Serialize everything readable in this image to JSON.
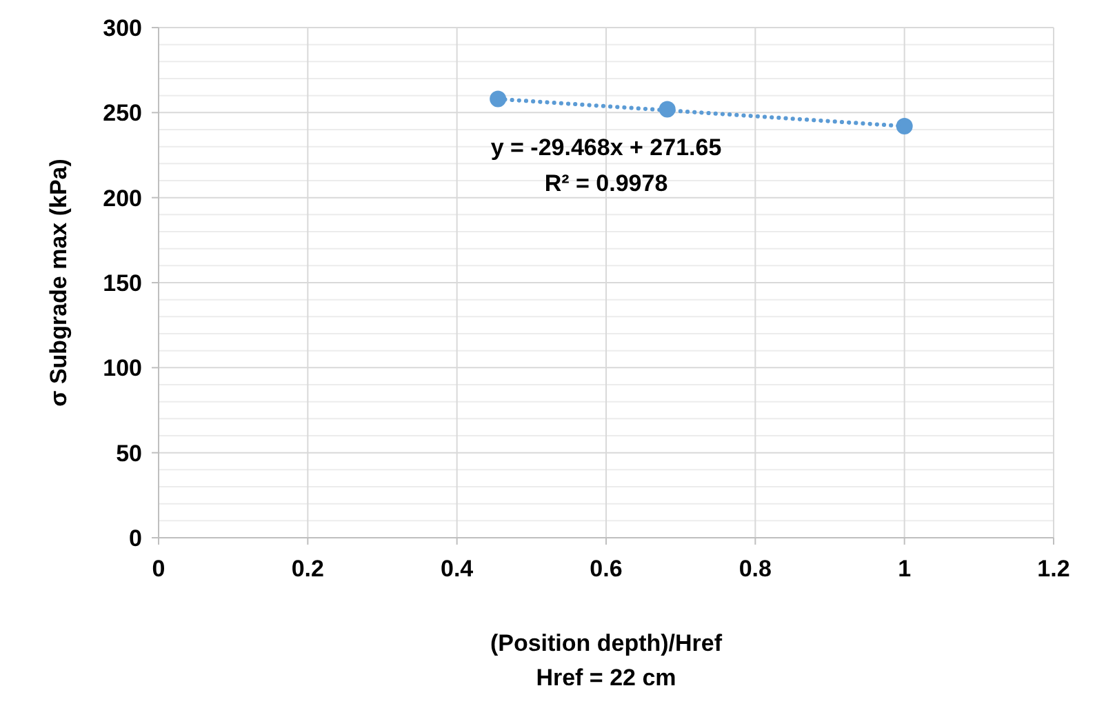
{
  "chart_data": {
    "type": "scatter",
    "xlabel": "(Position depth)/Href\nHref = 22 cm",
    "ylabel": "σ Subgrade max (kPa)",
    "xlim": [
      0,
      1.2
    ],
    "xticks": [
      0,
      0.2,
      0.4,
      0.6,
      0.8,
      1,
      1.2
    ],
    "ylim": [
      0,
      300
    ],
    "yticks": [
      0,
      {
        "value": 10,
        "label": null
      },
      {
        "value": 20,
        "label": null
      },
      {
        "value": 30,
        "label": null
      },
      {
        "value": 40,
        "label": null
      },
      50,
      {
        "value": 60,
        "label": null
      },
      {
        "value": 70,
        "label": null
      },
      {
        "value": 80,
        "label": null
      },
      {
        "value": 90,
        "label": null
      },
      100,
      {
        "value": 110,
        "label": null
      },
      {
        "value": 120,
        "label": null
      },
      {
        "value": 130,
        "label": null
      },
      {
        "value": 140,
        "label": null
      },
      150,
      {
        "value": 160,
        "label": null
      },
      {
        "value": 170,
        "label": null
      },
      {
        "value": 180,
        "label": null
      },
      {
        "value": 190,
        "label": null
      },
      200,
      {
        "value": 210,
        "label": null
      },
      {
        "value": 220,
        "label": null
      },
      {
        "value": 230,
        "label": null
      },
      {
        "value": 240,
        "label": null
      },
      250,
      {
        "value": 260,
        "label": null
      },
      {
        "value": 270,
        "label": null
      },
      {
        "value": 280,
        "label": null
      },
      {
        "value": 290,
        "label": null
      },
      300
    ],
    "grid": true,
    "series": [
      {
        "color": "#5b9bd5",
        "marker": "circle",
        "x": [
          0.455,
          0.682,
          1
        ],
        "values": [
          258,
          252,
          242
        ]
      },
      {
        "type": "line",
        "color": "#5b9bd5",
        "line_style": "dotted",
        "marker": "none",
        "x": [
          0.455,
          1
        ],
        "values": [
          258,
          242
        ]
      }
    ],
    "annotations": [
      "y = -29.468x + 271.65",
      "R² = 0.9978"
    ]
  }
}
